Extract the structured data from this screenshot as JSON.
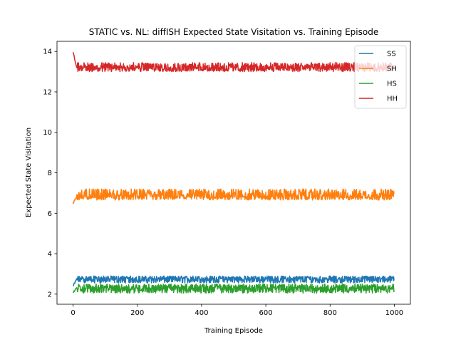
{
  "chart_data": {
    "type": "line",
    "title": "STATIC vs. NL: diffISH Expected State Visitation vs. Training Episode",
    "xlabel": "Training Episode",
    "ylabel": "Expected State Visitation",
    "xlim": [
      -50,
      1050
    ],
    "ylim": [
      1.5,
      14.5
    ],
    "xticks": [
      0,
      200,
      400,
      600,
      800,
      1000
    ],
    "yticks": [
      2,
      4,
      6,
      8,
      10,
      12,
      14
    ],
    "grid": false,
    "legend_position": "top-right",
    "series": [
      {
        "name": "SS",
        "color": "#1f77b4",
        "start_value": 2.4,
        "mean": 2.75,
        "band": [
          2.55,
          2.9
        ],
        "x_range": [
          0,
          999
        ]
      },
      {
        "name": "SH",
        "color": "#ff7f0e",
        "start_value": 6.5,
        "mean": 6.85,
        "band": [
          6.65,
          7.2
        ],
        "x_range": [
          0,
          999
        ]
      },
      {
        "name": "HS",
        "color": "#2ca02c",
        "start_value": 2.1,
        "mean": 2.3,
        "band": [
          2.05,
          2.5
        ],
        "x_range": [
          0,
          999
        ]
      },
      {
        "name": "HH",
        "color": "#d62728",
        "start_value": 13.95,
        "mean": 13.2,
        "band": [
          13.0,
          13.45
        ],
        "x_range": [
          0,
          999
        ]
      }
    ]
  }
}
